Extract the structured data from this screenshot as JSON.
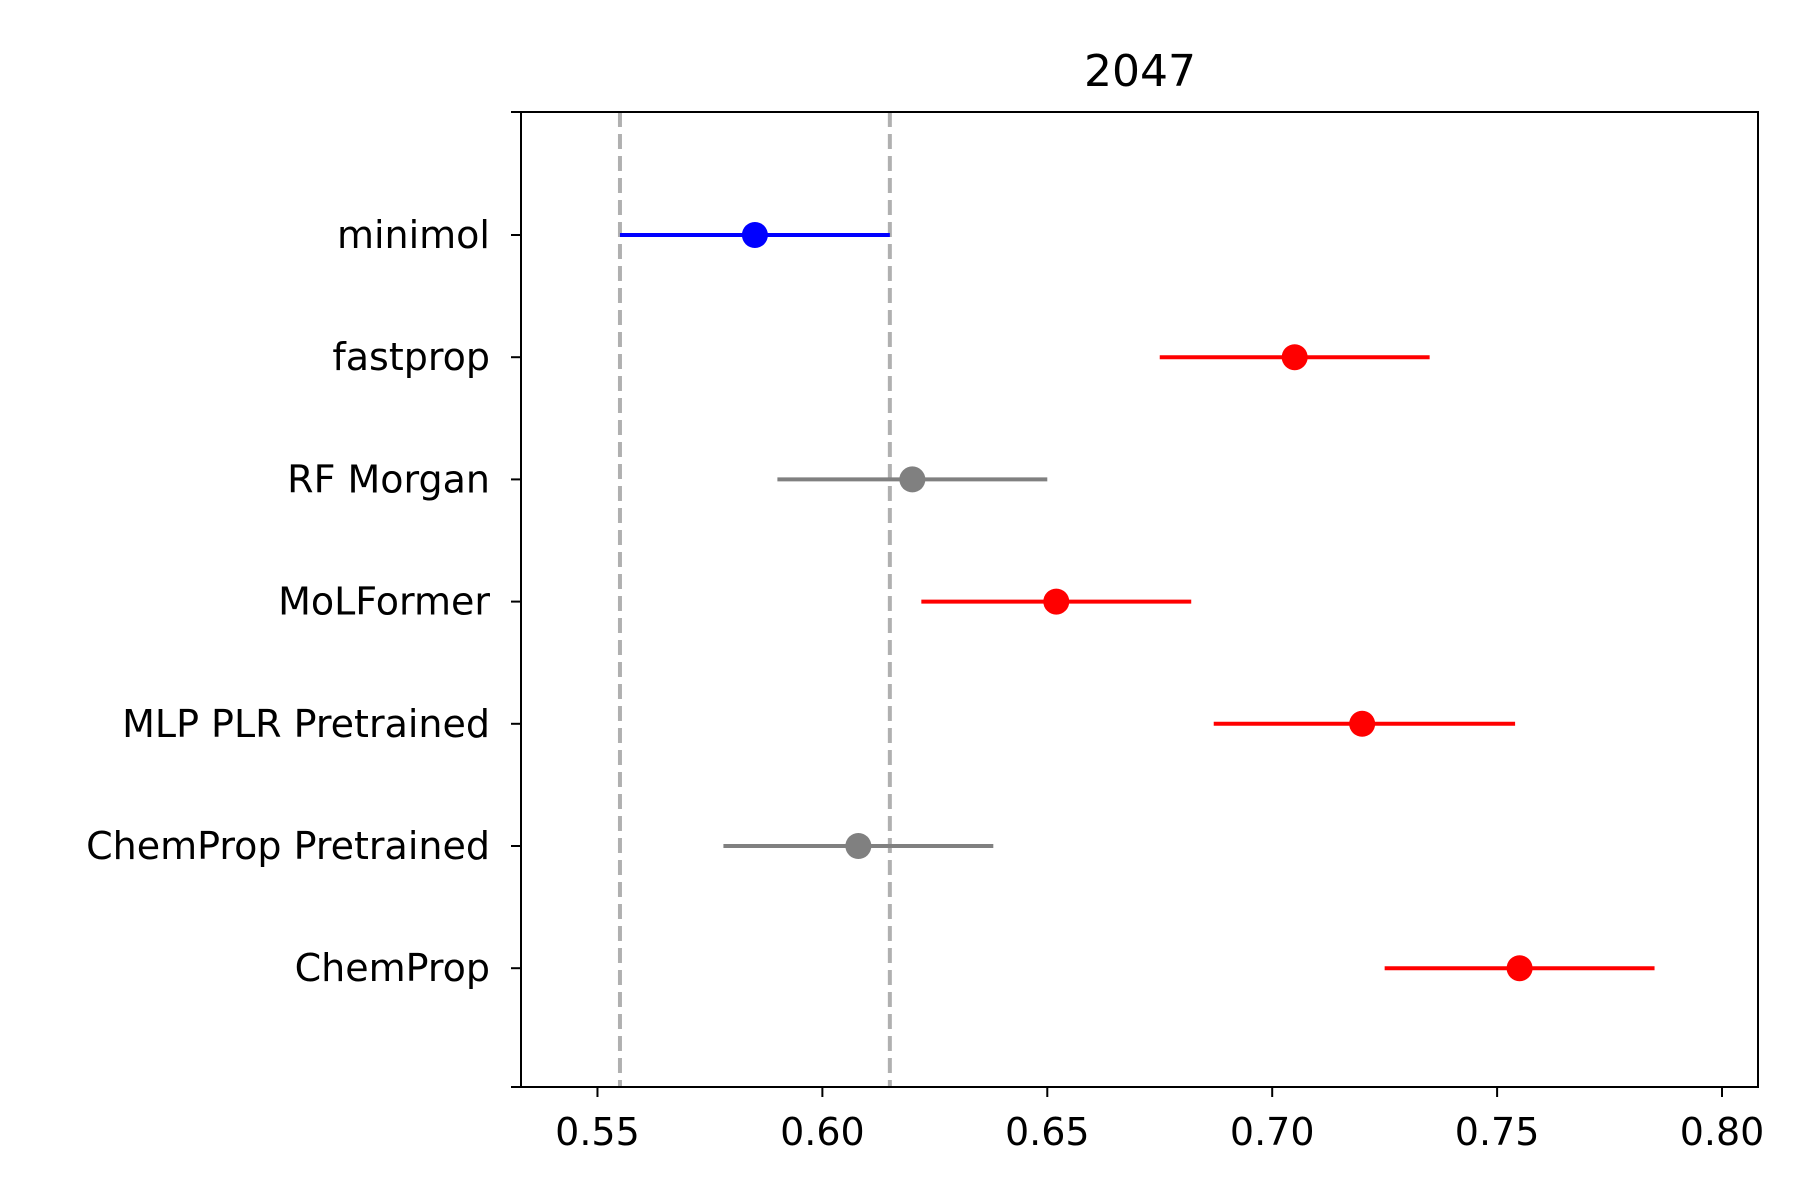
{
  "chart_data": {
    "type": "scatter",
    "title": "2047",
    "xlabel": "",
    "ylabel": "",
    "xlim": [
      0.533,
      0.808
    ],
    "xticks": [
      0.55,
      0.6,
      0.65,
      0.7,
      0.75,
      0.8
    ],
    "xtick_labels": [
      "0.55",
      "0.60",
      "0.65",
      "0.70",
      "0.75",
      "0.80"
    ],
    "reference_lines": [
      0.555,
      0.615
    ],
    "reference_line_color": "#b0b0b0",
    "grid": false,
    "series": [
      {
        "label": "minimol",
        "value": 0.585,
        "low": 0.555,
        "high": 0.615,
        "color": "#0000ff"
      },
      {
        "label": "fastprop",
        "value": 0.705,
        "low": 0.675,
        "high": 0.735,
        "color": "#ff0000"
      },
      {
        "label": "RF Morgan",
        "value": 0.62,
        "low": 0.59,
        "high": 0.65,
        "color": "#808080"
      },
      {
        "label": "MoLFormer",
        "value": 0.652,
        "low": 0.622,
        "high": 0.682,
        "color": "#ff0000"
      },
      {
        "label": "MLP PLR Pretrained",
        "value": 0.72,
        "low": 0.687,
        "high": 0.754,
        "color": "#ff0000"
      },
      {
        "label": "ChemProp Pretrained",
        "value": 0.608,
        "low": 0.578,
        "high": 0.638,
        "color": "#808080"
      },
      {
        "label": "ChemProp",
        "value": 0.755,
        "low": 0.725,
        "high": 0.785,
        "color": "#ff0000"
      }
    ]
  }
}
